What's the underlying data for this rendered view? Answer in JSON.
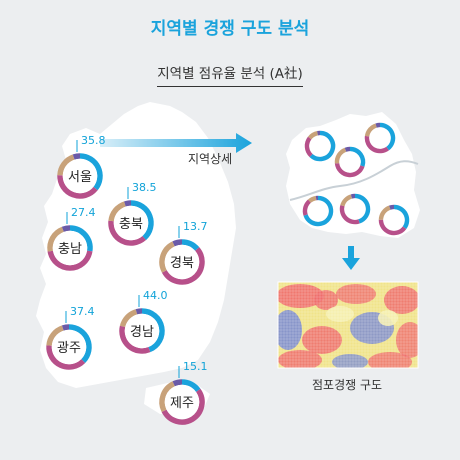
{
  "title": "지역별 경쟁 구도 분석",
  "subtitle": "지역별 점유율 분석 (A社)",
  "arrow_label": "지역상세",
  "detail_caption": "점포경쟁 구도",
  "colors": {
    "blue": "#1aa3dc",
    "pink": "#b7508a",
    "tan": "#c8a27a",
    "purple": "#6a5aa8",
    "map": "#ffffff"
  },
  "regions": [
    {
      "name": "서울",
      "value": "35.8",
      "share": 35.8
    },
    {
      "name": "충북",
      "value": "38.5",
      "share": 38.5
    },
    {
      "name": "충남",
      "value": "27.4",
      "share": 27.4
    },
    {
      "name": "경북",
      "value": "13.7",
      "share": 13.7
    },
    {
      "name": "광주",
      "value": "37.4",
      "share": 37.4
    },
    {
      "name": "경남",
      "value": "44.0",
      "share": 44.0
    },
    {
      "name": "제주",
      "value": "15.1",
      "share": 15.1
    }
  ]
}
